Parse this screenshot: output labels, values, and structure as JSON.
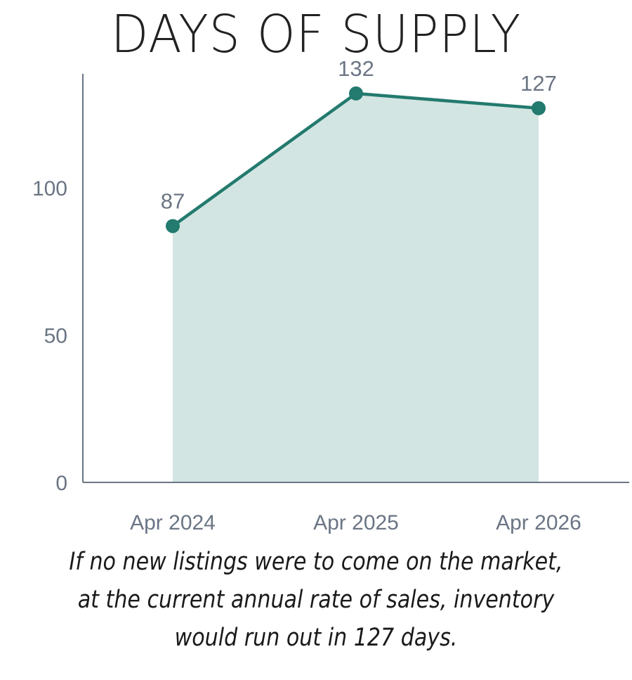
{
  "chart_data": {
    "type": "area",
    "title": "DAYS OF SUPPLY",
    "categories": [
      "Apr 2024",
      "Apr 2025",
      "Apr 2026"
    ],
    "series": [
      {
        "values": [
          87,
          132,
          127
        ]
      }
    ],
    "data_labels": [
      "87",
      "132",
      "127"
    ],
    "y_ticks": [
      0,
      50,
      100
    ],
    "y_tick_labels": [
      "0",
      "50",
      "100"
    ],
    "ylim": [
      0,
      140
    ],
    "grid": false,
    "colors": {
      "line": "#237a6e",
      "fill": "#d3e5e2",
      "axis": "#6b7584"
    }
  },
  "caption": "If no new listings were to come on the market, at the current annual rate of sales, inventory would run out in 127 days."
}
